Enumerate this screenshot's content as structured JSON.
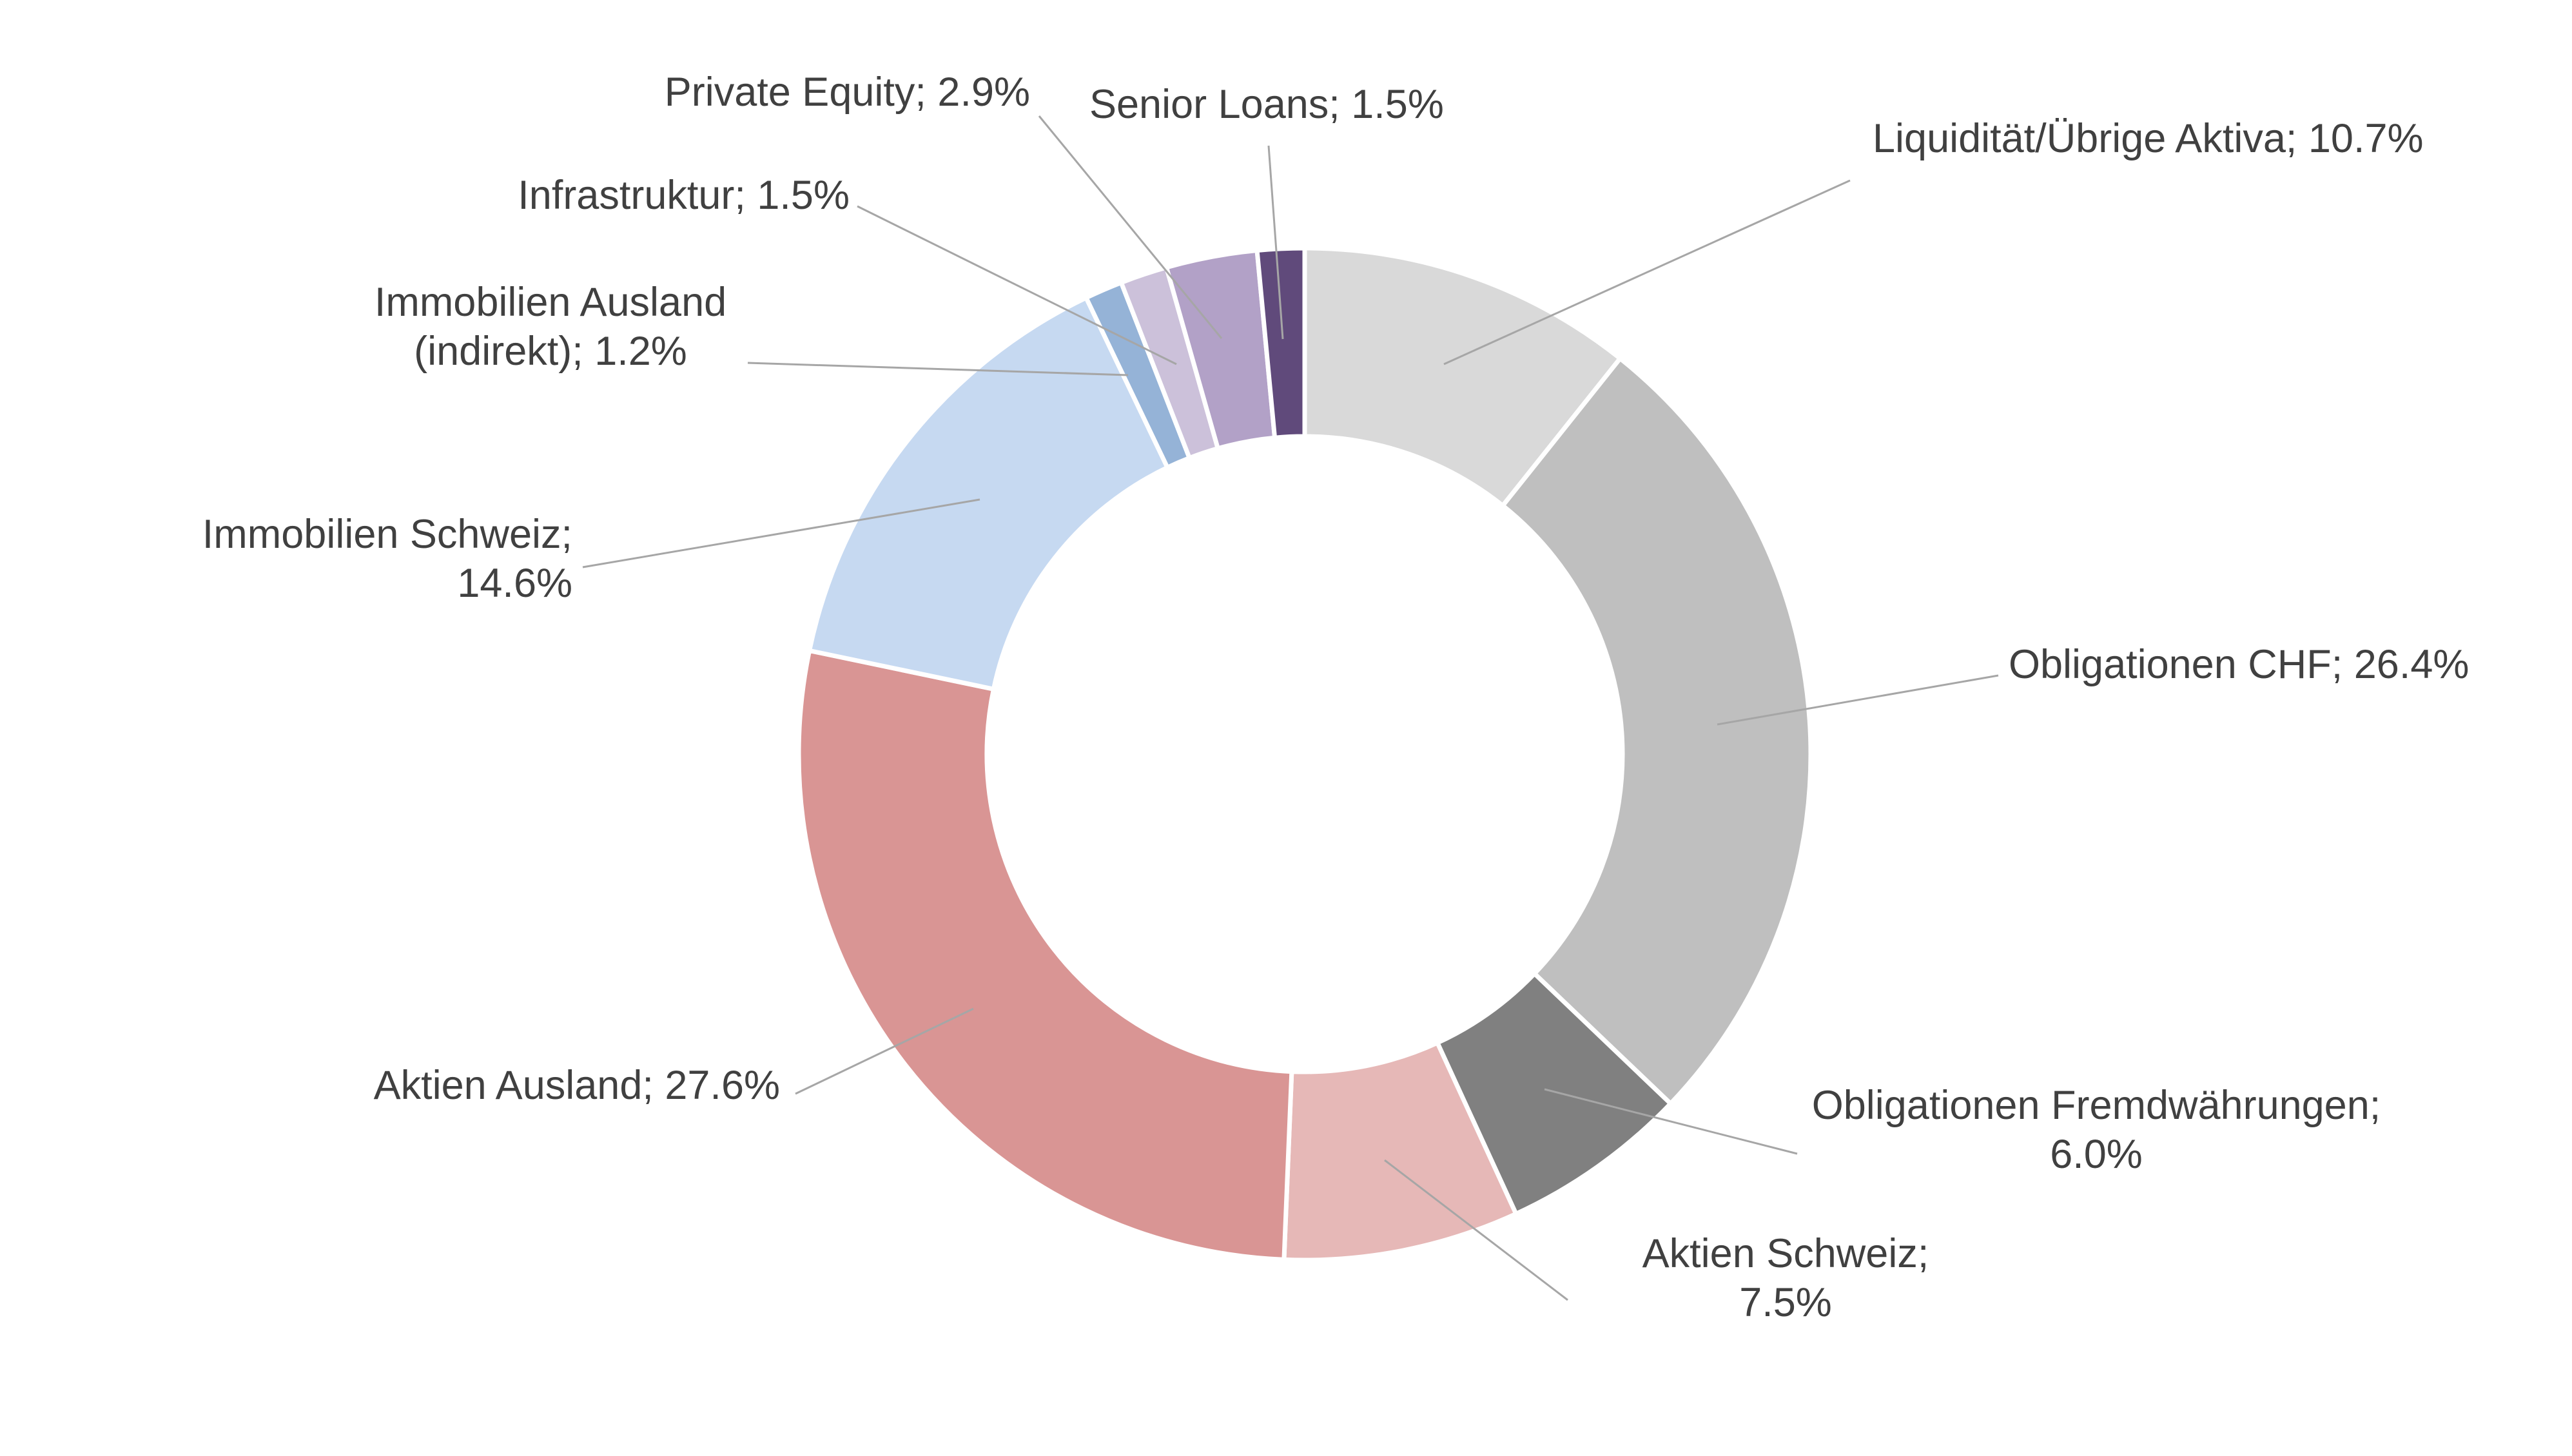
{
  "chart_data": {
    "type": "pie",
    "variant": "donut",
    "legend": "none",
    "slices": [
      {
        "label": "Liquidität/Übrige Aktiva",
        "value": 10.7,
        "display": "Liquidität/Übrige Aktiva; 10.7%",
        "lines": [
          "Liquidität/Übrige Aktiva; 10.7%"
        ],
        "color": "#d9d9d9"
      },
      {
        "label": "Obligationen CHF",
        "value": 26.4,
        "display": "Obligationen CHF; 26.4%",
        "lines": [
          "Obligationen CHF; 26.4%"
        ],
        "color": "#bfbfbf"
      },
      {
        "label": "Obligationen Fremdwährungen",
        "value": 6.0,
        "display": "Obligationen Fremdwährungen; 6.0%",
        "lines": [
          "Obligationen Fremdwährungen;",
          "6.0%"
        ],
        "color": "#808080"
      },
      {
        "label": "Aktien Schweiz",
        "value": 7.5,
        "display": "Aktien Schweiz; 7.5%",
        "lines": [
          "Aktien Schweiz;",
          "7.5%"
        ],
        "color": "#e6b8b7"
      },
      {
        "label": "Aktien Ausland",
        "value": 27.6,
        "display": "Aktien Ausland; 27.6%",
        "lines": [
          "Aktien Ausland; 27.6%"
        ],
        "color": "#d99594"
      },
      {
        "label": "Immobilien Schweiz",
        "value": 14.6,
        "display": "Immobilien Schweiz; 14.6%",
        "lines": [
          "Immobilien Schweiz;",
          "14.6%"
        ],
        "color": "#c6d9f1"
      },
      {
        "label": "Immobilien Ausland (indirekt)",
        "value": 1.2,
        "display": "Immobilien Ausland (indirekt); 1.2%",
        "lines": [
          "Immobilien Ausland",
          "(indirekt); 1.2%"
        ],
        "color": "#95b3d7"
      },
      {
        "label": "Infrastruktur",
        "value": 1.5,
        "display": "Infrastruktur; 1.5%",
        "lines": [
          "Infrastruktur; 1.5%"
        ],
        "color": "#ccc1da"
      },
      {
        "label": "Private Equity",
        "value": 2.9,
        "display": "Private Equity; 2.9%",
        "lines": [
          "Private Equity; 2.9%"
        ],
        "color": "#b2a1c7"
      },
      {
        "label": "Senior Loans",
        "value": 1.5,
        "display": "Senior Loans; 1.5%",
        "lines": [
          "Senior Loans; 1.5%"
        ],
        "color": "#604a7b"
      }
    ]
  }
}
